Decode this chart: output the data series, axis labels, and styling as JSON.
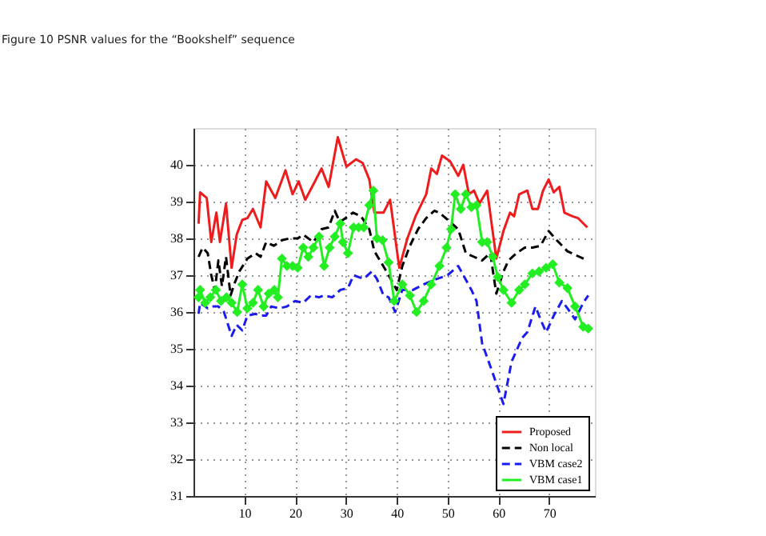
{
  "chart_data": {
    "type": "line",
    "title": "Figure 10 PSNR values for the “Bookshelf” sequence",
    "xlim": [
      0,
      79
    ],
    "xticks": [
      10,
      20,
      30,
      40,
      50,
      60,
      70
    ],
    "ylim": [
      31,
      41
    ],
    "yticks": [
      31,
      32,
      33,
      34,
      35,
      36,
      37,
      38,
      39,
      40
    ],
    "grid": true,
    "legend": "bottom right",
    "series": [
      {
        "name": "Proposed",
        "color": "#ee1c1c",
        "line_style": "solid",
        "marker": "none",
        "x": [
          1,
          1.3,
          2.6,
          3.5,
          4.5,
          5.2,
          6.4,
          7.5,
          8.5,
          9.6,
          10.6,
          11.7,
          13.2,
          14.3,
          16.1,
          18.1,
          19.5,
          20.7,
          22,
          23.9,
          25.2,
          26.6,
          28.4,
          30.1,
          32,
          33.3,
          34.6,
          35.6,
          37.4,
          38.7,
          40.5,
          42.1,
          43.7,
          45.8,
          46.8,
          47.9,
          48.9,
          50.5,
          52.1,
          53.1,
          54.2,
          55.2,
          56.3,
          57.8,
          59.6,
          61,
          62.3,
          63.1,
          64.1,
          65.7,
          66.7,
          67.8,
          68.8,
          69.9,
          70.9,
          72,
          73,
          74.6,
          75.7,
          77.5
        ],
        "values": [
          38.4,
          39.25,
          39.1,
          37.9,
          38.7,
          37.9,
          38.95,
          37.2,
          38.1,
          38.5,
          38.55,
          38.8,
          38.3,
          39.55,
          39.1,
          39.85,
          39.2,
          39.55,
          39.05,
          39.55,
          39.9,
          39.4,
          40.75,
          39.95,
          40.15,
          40.05,
          39.6,
          38.7,
          38.7,
          39.05,
          37.2,
          38.0,
          38.6,
          39.2,
          39.9,
          39.75,
          40.25,
          40.1,
          39.7,
          40.0,
          39.2,
          39.3,
          38.95,
          39.3,
          37.45,
          38.2,
          38.7,
          38.6,
          39.2,
          39.3,
          38.8,
          38.8,
          39.3,
          39.6,
          39.25,
          39.4,
          38.7,
          38.6,
          38.55,
          38.3
        ]
      },
      {
        "name": "Non local",
        "color": "#000000",
        "line_style": "dashed",
        "marker": "none",
        "x": [
          1,
          1.8,
          2.8,
          3.5,
          4.2,
          4.9,
          5.6,
          6.4,
          7.3,
          8,
          9,
          10.6,
          12.2,
          13.2,
          14.3,
          15.8,
          17.4,
          18.9,
          20.5,
          21.6,
          23.6,
          25.2,
          26.6,
          27.8,
          28.8,
          29.9,
          31.4,
          33,
          34.6,
          35.6,
          36.7,
          38.4,
          40,
          41.1,
          42.6,
          44.2,
          45.8,
          47.4,
          48.4,
          50.5,
          52.1,
          53.6,
          55.2,
          56.8,
          58.4,
          59.6,
          61,
          62,
          63.6,
          65.2,
          66.7,
          68.3,
          69.9,
          71.5,
          73.6,
          77.5
        ],
        "values": [
          37.5,
          37.75,
          37.6,
          37.0,
          36.6,
          37.4,
          36.7,
          37.5,
          36.45,
          36.75,
          37.1,
          37.45,
          37.6,
          37.5,
          37.9,
          37.8,
          37.95,
          38.0,
          38.0,
          38.1,
          37.9,
          38.25,
          38.3,
          38.75,
          38.45,
          38.55,
          38.7,
          38.6,
          38.25,
          37.65,
          37.4,
          37.0,
          36.6,
          37.25,
          37.8,
          38.25,
          38.55,
          38.75,
          38.7,
          38.45,
          38.25,
          37.6,
          37.5,
          37.4,
          37.6,
          36.5,
          37.1,
          37.4,
          37.6,
          37.75,
          37.75,
          37.8,
          38.2,
          37.95,
          37.65,
          37.4
        ]
      },
      {
        "name": "VBM case2",
        "color": "#1c1cee",
        "line_style": "dashed",
        "marker": "none",
        "x": [
          1,
          1.3,
          2.8,
          3.9,
          4.9,
          6,
          7.5,
          8.5,
          9.6,
          10.6,
          12.2,
          13.2,
          14.3,
          15.3,
          16.9,
          18.4,
          20,
          21.6,
          23.1,
          24.7,
          25.7,
          27.3,
          28.9,
          30.4,
          31.5,
          32.5,
          33.5,
          35.1,
          36.1,
          37.4,
          38.4,
          39.7,
          41.1,
          43.2,
          45.3,
          47.9,
          50,
          52.1,
          53.1,
          54.7,
          55.7,
          56.8,
          59,
          61,
          62.6,
          64.7,
          65.7,
          67.3,
          68.3,
          69.4,
          70.9,
          72.5,
          73.6,
          75.1,
          76.7,
          77.7
        ],
        "values": [
          35.95,
          36.25,
          36.1,
          36.15,
          36.15,
          36.0,
          35.35,
          35.65,
          35.5,
          35.9,
          35.95,
          35.9,
          35.9,
          36.15,
          36.1,
          36.15,
          36.3,
          36.25,
          36.45,
          36.4,
          36.45,
          36.4,
          36.6,
          36.65,
          37.0,
          36.95,
          36.9,
          37.1,
          36.9,
          36.45,
          36.4,
          36.0,
          36.6,
          36.6,
          36.75,
          36.9,
          37.0,
          37.25,
          37.0,
          36.6,
          36.3,
          35.15,
          34.3,
          33.5,
          34.65,
          35.3,
          35.45,
          36.15,
          35.8,
          35.45,
          35.9,
          36.3,
          36.1,
          35.8,
          36.25,
          36.45
        ]
      },
      {
        "name": "VBM case1",
        "color": "#22ee22",
        "line_style": "solid",
        "marker": "diamond",
        "x": [
          1,
          1.3,
          2.3,
          3.3,
          4.4,
          5.4,
          6.5,
          7.5,
          8.6,
          9.6,
          10.6,
          11.7,
          12.7,
          13.8,
          14.8,
          15.9,
          16.6,
          17.4,
          18.4,
          19.5,
          20.5,
          21.6,
          22.6,
          23.6,
          24.7,
          25.7,
          26.8,
          27.8,
          28.9,
          29.4,
          30.4,
          31.5,
          32.5,
          33.5,
          34.6,
          35.4,
          36.1,
          37.2,
          38.4,
          39.5,
          41.1,
          42.6,
          43.9,
          45.3,
          46.8,
          48.4,
          49.8,
          50.7,
          51.5,
          52.6,
          53.6,
          54.7,
          55.7,
          56.8,
          57.8,
          58.9,
          59.9,
          61,
          62.6,
          64.1,
          65.2,
          66.7,
          68,
          69.4,
          70.7,
          72,
          73.6,
          75.1,
          76.7,
          77.7
        ],
        "values": [
          36.4,
          36.6,
          36.25,
          36.4,
          36.6,
          36.3,
          36.4,
          36.25,
          36.0,
          36.75,
          36.1,
          36.25,
          36.6,
          36.15,
          36.5,
          36.6,
          36.4,
          37.45,
          37.25,
          37.25,
          37.2,
          37.75,
          37.5,
          37.75,
          38.05,
          37.25,
          37.75,
          38.05,
          38.4,
          37.9,
          37.6,
          38.3,
          38.3,
          38.3,
          38.9,
          39.3,
          38.0,
          37.95,
          37.35,
          36.3,
          36.75,
          36.45,
          36.0,
          36.3,
          36.75,
          37.25,
          37.75,
          38.25,
          39.2,
          38.8,
          39.2,
          38.85,
          38.9,
          37.9,
          37.9,
          37.5,
          36.95,
          36.6,
          36.25,
          36.6,
          36.75,
          37.05,
          37.1,
          37.2,
          37.3,
          36.8,
          36.65,
          36.15,
          35.6,
          35.55
        ]
      }
    ]
  }
}
